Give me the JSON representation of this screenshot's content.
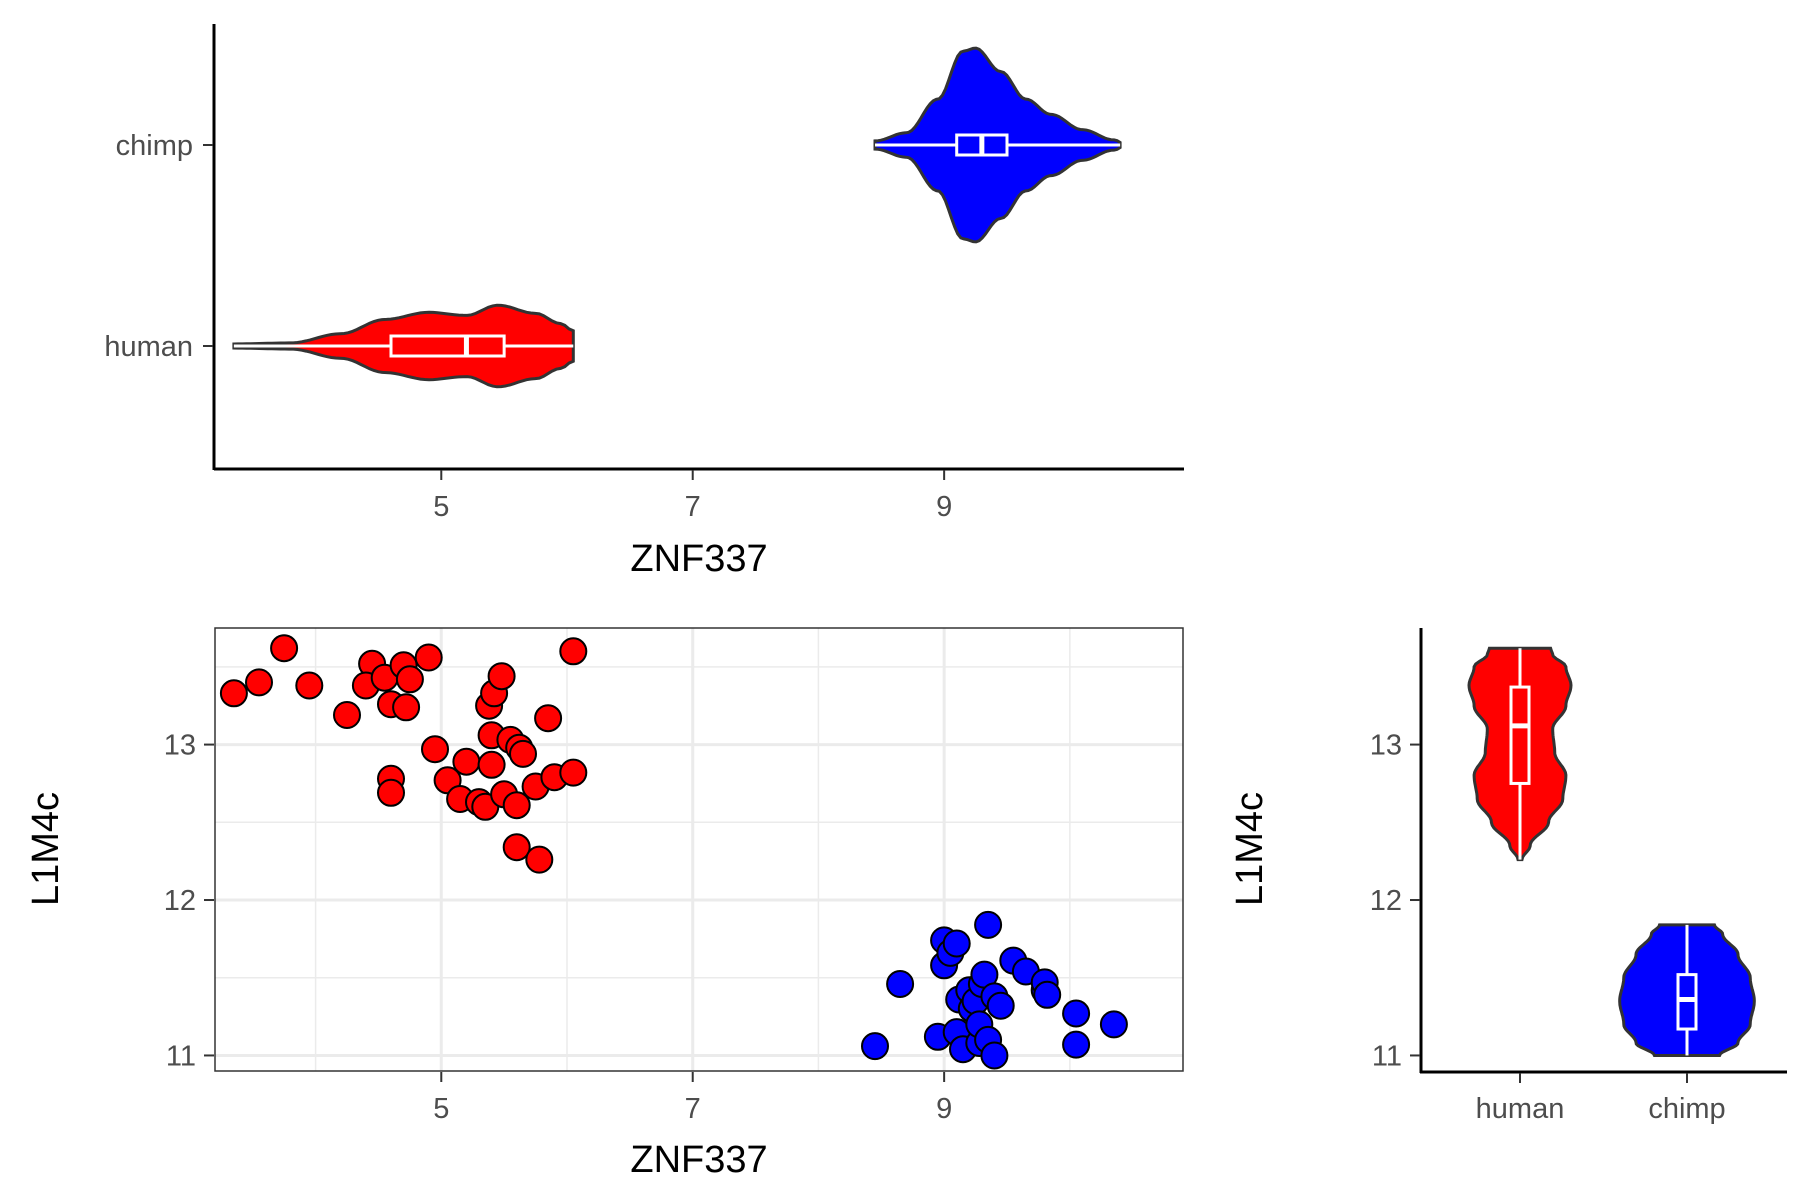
{
  "chart_data": [
    {
      "type": "violin",
      "panel": "top",
      "orientation": "horizontal",
      "xlabel": "ZNF337",
      "ylabel": "",
      "xlim": [
        3.2,
        10.9
      ],
      "xticks": [
        "5",
        "7",
        "9"
      ],
      "categories": [
        "human",
        "chimp"
      ],
      "grid": false,
      "series": [
        {
          "name": "human",
          "color": "#ff0000",
          "min": 3.35,
          "q1": 4.6,
          "median": 5.2,
          "q3": 5.5,
          "max": 6.05,
          "density": [
            [
              3.35,
              0.02
            ],
            [
              3.8,
              0.03
            ],
            [
              4.2,
              0.12
            ],
            [
              4.55,
              0.26
            ],
            [
              4.9,
              0.33
            ],
            [
              5.2,
              0.3
            ],
            [
              5.45,
              0.4
            ],
            [
              5.75,
              0.32
            ],
            [
              5.95,
              0.22
            ],
            [
              6.05,
              0.15
            ]
          ]
        },
        {
          "name": "chimp",
          "color": "#0000ff",
          "min": 8.45,
          "q1": 9.1,
          "median": 9.3,
          "q3": 9.5,
          "max": 10.4,
          "density": [
            [
              8.45,
              0.04
            ],
            [
              8.7,
              0.12
            ],
            [
              8.95,
              0.45
            ],
            [
              9.15,
              0.92
            ],
            [
              9.25,
              0.95
            ],
            [
              9.45,
              0.72
            ],
            [
              9.65,
              0.45
            ],
            [
              9.85,
              0.3
            ],
            [
              10.1,
              0.15
            ],
            [
              10.35,
              0.05
            ],
            [
              10.45,
              0.0
            ]
          ]
        }
      ]
    },
    {
      "type": "scatter",
      "panel": "bottom-left",
      "xlabel": "ZNF337",
      "ylabel": "L1M4c",
      "xlim": [
        3.2,
        10.9
      ],
      "ylim": [
        10.9,
        13.75
      ],
      "xticks": [
        "5",
        "7",
        "9"
      ],
      "yticks": [
        "11",
        "12",
        "13"
      ],
      "grid": true,
      "series": [
        {
          "name": "human",
          "color": "#ff0000",
          "points": [
            [
              3.35,
              13.33
            ],
            [
              3.55,
              13.4
            ],
            [
              3.75,
              13.62
            ],
            [
              3.95,
              13.38
            ],
            [
              4.25,
              13.19
            ],
            [
              4.45,
              13.52
            ],
            [
              4.4,
              13.38
            ],
            [
              4.55,
              13.43
            ],
            [
              4.6,
              13.26
            ],
            [
              4.7,
              13.51
            ],
            [
              4.75,
              13.42
            ],
            [
              4.72,
              13.24
            ],
            [
              4.9,
              13.56
            ],
            [
              4.6,
              12.78
            ],
            [
              4.6,
              12.69
            ],
            [
              4.95,
              12.97
            ],
            [
              5.05,
              12.77
            ],
            [
              5.15,
              12.65
            ],
            [
              5.2,
              12.89
            ],
            [
              5.3,
              12.63
            ],
            [
              5.35,
              12.6
            ],
            [
              5.4,
              12.87
            ],
            [
              5.4,
              13.06
            ],
            [
              5.38,
              13.25
            ],
            [
              5.42,
              13.33
            ],
            [
              5.48,
              13.44
            ],
            [
              5.5,
              12.68
            ],
            [
              5.55,
              13.03
            ],
            [
              5.6,
              12.61
            ],
            [
              5.62,
              12.98
            ],
            [
              5.65,
              12.94
            ],
            [
              5.6,
              12.34
            ],
            [
              5.75,
              12.73
            ],
            [
              5.78,
              12.26
            ],
            [
              5.85,
              13.17
            ],
            [
              5.9,
              12.79
            ],
            [
              6.05,
              12.82
            ],
            [
              6.05,
              13.6
            ]
          ]
        },
        {
          "name": "chimp",
          "color": "#0000ff",
          "points": [
            [
              8.45,
              11.06
            ],
            [
              8.65,
              11.46
            ],
            [
              8.95,
              11.12
            ],
            [
              9.0,
              11.74
            ],
            [
              9.0,
              11.58
            ],
            [
              9.05,
              11.66
            ],
            [
              9.1,
              11.72
            ],
            [
              9.1,
              11.15
            ],
            [
              9.12,
              11.36
            ],
            [
              9.15,
              11.04
            ],
            [
              9.2,
              11.42
            ],
            [
              9.22,
              11.3
            ],
            [
              9.25,
              11.35
            ],
            [
              9.28,
              11.08
            ],
            [
              9.28,
              11.2
            ],
            [
              9.3,
              11.46
            ],
            [
              9.32,
              11.52
            ],
            [
              9.35,
              11.1
            ],
            [
              9.35,
              11.84
            ],
            [
              9.4,
              11.38
            ],
            [
              9.4,
              11.0
            ],
            [
              9.45,
              11.32
            ],
            [
              9.55,
              11.61
            ],
            [
              9.65,
              11.54
            ],
            [
              9.8,
              11.42
            ],
            [
              9.8,
              11.47
            ],
            [
              9.82,
              11.39
            ],
            [
              10.05,
              11.27
            ],
            [
              10.05,
              11.07
            ],
            [
              10.35,
              11.2
            ]
          ]
        }
      ]
    },
    {
      "type": "violin",
      "panel": "bottom-right",
      "orientation": "vertical",
      "xlabel": "",
      "ylabel": "L1M4c",
      "ylim": [
        10.9,
        13.75
      ],
      "yticks": [
        "11",
        "12",
        "13"
      ],
      "categories": [
        "human",
        "chimp"
      ],
      "grid": false,
      "series": [
        {
          "name": "human",
          "color": "#ff0000",
          "min": 12.26,
          "q1": 12.75,
          "median": 13.12,
          "q3": 13.37,
          "max": 13.62,
          "density": [
            [
              12.26,
              0.02
            ],
            [
              12.35,
              0.1
            ],
            [
              12.5,
              0.28
            ],
            [
              12.65,
              0.42
            ],
            [
              12.8,
              0.45
            ],
            [
              12.95,
              0.34
            ],
            [
              13.1,
              0.32
            ],
            [
              13.25,
              0.45
            ],
            [
              13.38,
              0.5
            ],
            [
              13.5,
              0.45
            ],
            [
              13.58,
              0.32
            ],
            [
              13.62,
              0.3
            ]
          ]
        },
        {
          "name": "chimp",
          "color": "#0000ff",
          "min": 11.0,
          "q1": 11.17,
          "median": 11.36,
          "q3": 11.52,
          "max": 11.84,
          "density": [
            [
              11.0,
              0.32
            ],
            [
              11.08,
              0.5
            ],
            [
              11.2,
              0.62
            ],
            [
              11.35,
              0.66
            ],
            [
              11.5,
              0.62
            ],
            [
              11.65,
              0.5
            ],
            [
              11.78,
              0.35
            ],
            [
              11.84,
              0.27
            ]
          ]
        }
      ]
    }
  ]
}
